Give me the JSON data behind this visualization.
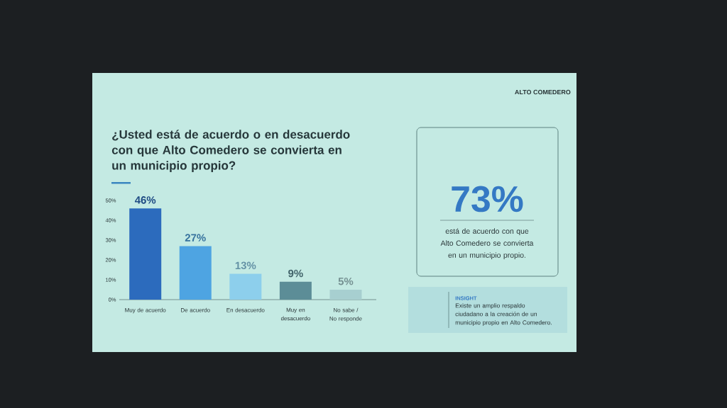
{
  "chart_data": [
    {
      "type": "bar",
      "title": "¿Usted está de acuerdo o en desacuerdo con que Alto Comedero se convierta en un municipio propio?",
      "categories": [
        "Muy de acuerdo",
        "De acuerdo",
        "En desacuerdo",
        "Muy en desacuerdo",
        "No sabe / No responde"
      ],
      "values": [
        46,
        27,
        13,
        9,
        5
      ],
      "colors": [
        "#2c6bbd",
        "#4ea4e2",
        "#8dcfec",
        "#5c8d97",
        "#a7cfd0"
      ],
      "value_labels": [
        "46%",
        "27%",
        "13%",
        "9%",
        "5%"
      ],
      "ylim": [
        0,
        50
      ],
      "yticks": [
        {
          "value": 0,
          "label": "0%"
        },
        {
          "value": 10,
          "label": "10%"
        },
        {
          "value": 20,
          "label": "20%"
        },
        {
          "value": 30,
          "label": "30%"
        },
        {
          "value": 40,
          "label": "40%"
        },
        {
          "value": 50,
          "label": "50%"
        }
      ]
    },
    {
      "type": "other",
      "annotations": [
        "ALTO COMEDERO",
        "73%",
        "está de acuerdo con que Alto Comedero se convierta en un municipio propio.",
        "INSIGHT",
        "Existe un amplio respaldo ciudadano a la creación de un municipio propio en Alto Comedero."
      ]
    }
  ]
}
